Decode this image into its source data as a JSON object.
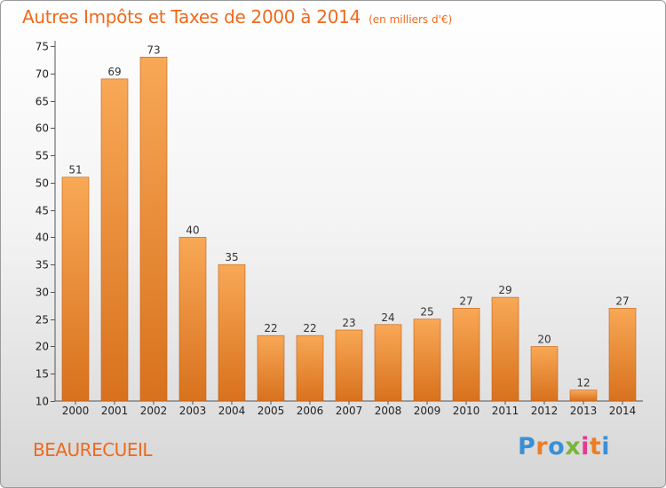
{
  "header": {
    "title": "Autres Impôts et Taxes de 2000 à 2014",
    "subtitle": "(en milliers d'€)"
  },
  "footer": {
    "city": "BEAURECUEIL",
    "logo": "Proxiti"
  },
  "colors": {
    "accent": "#ee6a1d",
    "bar_top": "#f8a856",
    "bar_bottom": "#d8711d",
    "bar_edge": "#c45f14"
  },
  "chart_data": {
    "type": "bar",
    "categories": [
      "2000",
      "2001",
      "2002",
      "2003",
      "2004",
      "2005",
      "2006",
      "2007",
      "2008",
      "2009",
      "2010",
      "2011",
      "2012",
      "2013",
      "2014"
    ],
    "values": [
      51,
      69,
      73,
      40,
      35,
      22,
      22,
      23,
      24,
      25,
      27,
      29,
      20,
      12,
      27
    ],
    "title": "Autres Impôts et Taxes de 2000 à 2014",
    "subtitle": "(en milliers d'€)",
    "xlabel": "",
    "ylabel": "",
    "ylim": [
      10,
      75
    ],
    "yticks": [
      10,
      15,
      20,
      25,
      30,
      35,
      40,
      45,
      50,
      55,
      60,
      65,
      70,
      75
    ],
    "grid": false,
    "legend": "none"
  }
}
